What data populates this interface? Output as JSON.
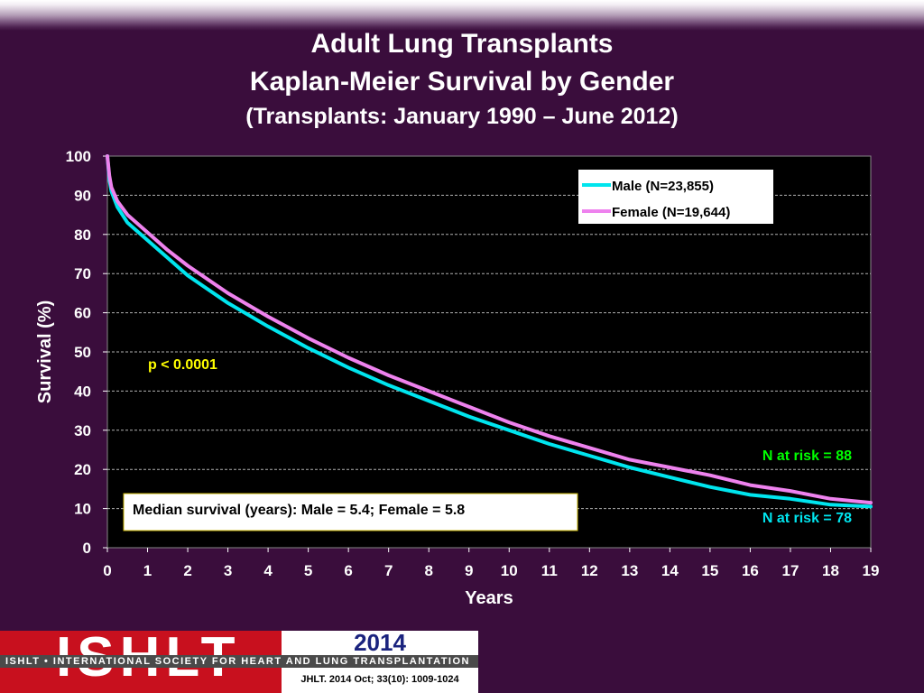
{
  "header": {
    "title": "Adult Lung Transplants",
    "subtitle": "Kaplan-Meier Survival by Gender",
    "subtitle2": "(Transplants: January 1990 – June 2012)"
  },
  "chart_data": {
    "type": "line",
    "xlabel": "Years",
    "ylabel": "Survival (%)",
    "xlim": [
      0,
      19
    ],
    "ylim": [
      0,
      100
    ],
    "xticks": [
      0,
      1,
      2,
      3,
      4,
      5,
      6,
      7,
      8,
      9,
      10,
      11,
      12,
      13,
      14,
      15,
      16,
      17,
      18,
      19
    ],
    "yticks": [
      0,
      10,
      20,
      30,
      40,
      50,
      60,
      70,
      80,
      90,
      100
    ],
    "grid": "horizontal dashed",
    "legend_position": "top-right",
    "series": [
      {
        "name": "Male (N=23,855)",
        "color": "#00e5ee",
        "x": [
          0,
          0.05,
          0.1,
          0.25,
          0.5,
          1,
          1.5,
          2,
          3,
          4,
          5,
          6,
          7,
          8,
          9,
          10,
          11,
          12,
          13,
          14,
          15,
          16,
          17,
          18,
          19
        ],
        "y": [
          100,
          94,
          91,
          87,
          83,
          78.5,
          74,
          69.5,
          62.5,
          56.5,
          51,
          46,
          41.5,
          37.5,
          33.5,
          30,
          26.5,
          23.5,
          20.5,
          18,
          15.5,
          13.5,
          12.5,
          11,
          10.5
        ]
      },
      {
        "name": "Female (N=19,644)",
        "color": "#ee82ee",
        "x": [
          0,
          0.05,
          0.1,
          0.25,
          0.5,
          1,
          1.5,
          2,
          3,
          4,
          5,
          6,
          7,
          8,
          9,
          10,
          11,
          12,
          13,
          14,
          15,
          16,
          17,
          18,
          19
        ],
        "y": [
          100,
          95,
          92,
          88.5,
          85,
          80.5,
          76,
          72,
          65,
          59,
          53.5,
          48.5,
          44,
          40,
          36,
          32,
          28.5,
          25.5,
          22.5,
          20.5,
          18.5,
          16,
          14.5,
          12.5,
          11.5
        ]
      }
    ],
    "annotations": {
      "p_value": "p < 0.0001",
      "median": "Median survival (years): Male = 5.4; Female = 5.8",
      "female_at_risk": "N at risk = 88",
      "male_at_risk": "N at risk = 78"
    }
  },
  "footer": {
    "logo": "ISHLT",
    "society": "ISHLT • INTERNATIONAL SOCIETY FOR HEART AND LUNG TRANSPLANTATION",
    "year": "2014",
    "citation": "JHLT. 2014 Oct; 33(10): 1009-1024"
  }
}
